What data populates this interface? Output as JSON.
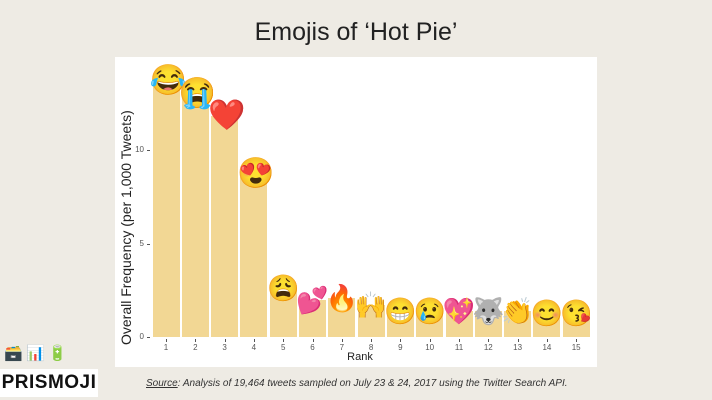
{
  "title": "Emojis of ‘Hot Pie’",
  "chart_data": {
    "type": "bar",
    "title": "Emojis of ‘Hot Pie’",
    "xlabel": "Rank",
    "ylabel": "Overall Frequency (per 1,000 Tweets)",
    "categories": [
      "1",
      "2",
      "3",
      "4",
      "5",
      "6",
      "7",
      "8",
      "9",
      "10",
      "11",
      "12",
      "13",
      "14",
      "15"
    ],
    "values": [
      13.7,
      13.0,
      11.8,
      8.7,
      2.6,
      2.0,
      2.1,
      1.7,
      1.4,
      1.4,
      1.4,
      1.4,
      1.4,
      1.3,
      1.3
    ],
    "emojis": [
      "😂",
      "😭",
      "❤️",
      "😍",
      "😩",
      "💕",
      "🔥",
      "🙌",
      "😁",
      "😢",
      "💖",
      "🐺",
      "👏",
      "😊",
      "😘"
    ],
    "emoji_names": [
      "face-with-tears-of-joy",
      "loudly-crying-face",
      "red-heart",
      "heart-eyes",
      "weary-face",
      "two-hearts",
      "fire",
      "raising-hands",
      "grinning-grimacing",
      "crying-face",
      "sparkling-heart",
      "wolf",
      "clapping-hands",
      "smiling-blush",
      "kissing-heart"
    ],
    "yticks": [
      0,
      5,
      10
    ],
    "ylim": [
      0,
      14.5
    ],
    "grid": false,
    "bar_color": "#f2d794"
  },
  "footer": {
    "source_label": "Source",
    "source_text": ": Analysis of 19,464 tweets sampled on July 23 & 24, 2017 using the Twitter Search API.",
    "logo_text": "PRISMOJI",
    "icons": [
      "🗃️",
      "📊",
      "🔋"
    ]
  }
}
